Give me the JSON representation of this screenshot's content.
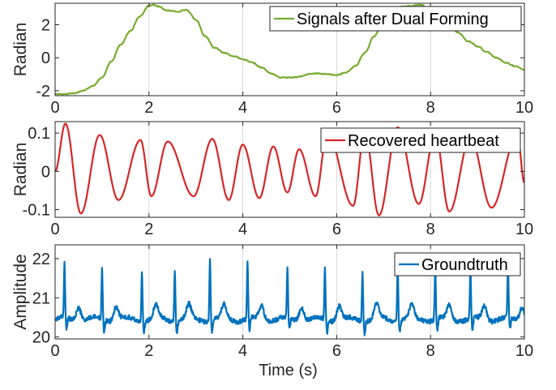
{
  "chart_data": [
    {
      "type": "line",
      "ylabel": "Radian",
      "xlabel": "",
      "xlim": [
        0,
        10
      ],
      "ylim": [
        -2.3,
        3.3
      ],
      "xticks": [
        0,
        2,
        4,
        6,
        8,
        10
      ],
      "xtick_labels": [
        "0",
        "2",
        "4",
        "6",
        "8",
        "10"
      ],
      "yticks": [
        -2,
        0,
        2
      ],
      "ytick_labels": [
        "-2",
        "0",
        "2"
      ],
      "grid": "vertical",
      "legend_position": "top-right",
      "color": "#77AC30",
      "series": [
        {
          "name": "Signals after Dual Forming",
          "x": [
            0,
            0.2,
            0.4,
            0.6,
            0.8,
            1.0,
            1.2,
            1.4,
            1.6,
            1.8,
            2.0,
            2.1,
            2.2,
            2.4,
            2.6,
            2.8,
            3.0,
            3.2,
            3.4,
            3.6,
            3.8,
            4.0,
            4.2,
            4.4,
            4.6,
            4.8,
            5.0,
            5.2,
            5.4,
            5.6,
            5.8,
            6.0,
            6.2,
            6.4,
            6.6,
            6.8,
            7.0,
            7.2,
            7.4,
            7.6,
            7.8,
            8.0,
            8.2,
            8.4,
            8.6,
            8.8,
            9.0,
            9.2,
            9.4,
            9.6,
            9.8,
            10.0
          ],
          "values": [
            -2.2,
            -2.2,
            -2.15,
            -2.0,
            -1.7,
            -1.2,
            -0.2,
            0.8,
            1.6,
            2.5,
            3.15,
            3.2,
            3.1,
            2.85,
            2.8,
            2.9,
            2.3,
            1.3,
            0.6,
            0.3,
            0.1,
            -0.1,
            -0.3,
            -0.6,
            -0.95,
            -1.2,
            -1.2,
            -1.15,
            -1.0,
            -0.95,
            -1.0,
            -1.05,
            -0.9,
            -0.5,
            0.3,
            1.3,
            2.2,
            2.8,
            3.1,
            3.15,
            3.2,
            2.9,
            2.5,
            2.0,
            1.5,
            1.0,
            0.7,
            0.35,
            0.0,
            -0.3,
            -0.5,
            -0.75
          ]
        }
      ]
    },
    {
      "type": "line",
      "ylabel": "Radian",
      "xlabel": "",
      "xlim": [
        0,
        10
      ],
      "ylim": [
        -0.12,
        0.13
      ],
      "xticks": [
        0,
        2,
        4,
        6,
        8,
        10
      ],
      "xtick_labels": [
        "0",
        "2",
        "4",
        "6",
        "8",
        "10"
      ],
      "yticks": [
        -0.1,
        0,
        0.1
      ],
      "ytick_labels": [
        "-0.1",
        "0",
        "0.1"
      ],
      "grid": "vertical",
      "legend_position": "top-right",
      "color": "#D62728",
      "series": [
        {
          "name": "Recovered heartbeat",
          "peaks": [
            [
              0.22,
              0.125
            ],
            [
              0.95,
              0.095
            ],
            [
              1.82,
              0.082
            ],
            [
              2.4,
              0.078
            ],
            [
              3.35,
              0.085
            ],
            [
              4.0,
              0.07
            ],
            [
              4.65,
              0.065
            ],
            [
              5.2,
              0.058
            ],
            [
              5.8,
              0.1
            ],
            [
              6.6,
              0.105
            ],
            [
              7.3,
              0.115
            ],
            [
              8.1,
              0.098
            ],
            [
              8.85,
              0.088
            ],
            [
              9.85,
              0.095
            ]
          ],
          "troughs": [
            [
              0.0,
              0.0
            ],
            [
              0.55,
              -0.11
            ],
            [
              1.35,
              -0.075
            ],
            [
              2.05,
              -0.065
            ],
            [
              2.95,
              -0.065
            ],
            [
              3.7,
              -0.075
            ],
            [
              4.35,
              -0.07
            ],
            [
              4.95,
              -0.055
            ],
            [
              5.55,
              -0.065
            ],
            [
              6.35,
              -0.09
            ],
            [
              6.9,
              -0.115
            ],
            [
              7.75,
              -0.085
            ],
            [
              8.4,
              -0.105
            ],
            [
              9.3,
              -0.095
            ],
            [
              10.0,
              -0.03
            ]
          ]
        }
      ]
    },
    {
      "type": "line",
      "ylabel": "Amplitude",
      "xlabel": "Time (s)",
      "xlim": [
        0,
        10
      ],
      "ylim": [
        19.95,
        22.35
      ],
      "xticks": [
        0,
        2,
        4,
        6,
        8,
        10
      ],
      "xtick_labels": [
        "0",
        "2",
        "4",
        "6",
        "8",
        "10"
      ],
      "yticks": [
        20,
        21,
        22
      ],
      "ytick_labels": [
        "20",
        "21",
        "22"
      ],
      "grid": "vertical",
      "legend_position": "top-right",
      "color": "#0072BD",
      "series": [
        {
          "name": "Groundtruth",
          "baseline": 20.45,
          "r_peaks": [
            [
              0.2,
              21.85
            ],
            [
              1.0,
              21.75
            ],
            [
              1.85,
              21.7
            ],
            [
              2.55,
              21.75
            ],
            [
              3.3,
              22.05
            ],
            [
              4.1,
              21.9
            ],
            [
              4.95,
              21.7
            ],
            [
              5.75,
              21.75
            ],
            [
              6.55,
              21.7
            ],
            [
              7.3,
              21.8
            ],
            [
              8.1,
              21.75
            ],
            [
              8.85,
              21.7
            ],
            [
              9.65,
              21.8
            ]
          ]
        }
      ]
    }
  ]
}
